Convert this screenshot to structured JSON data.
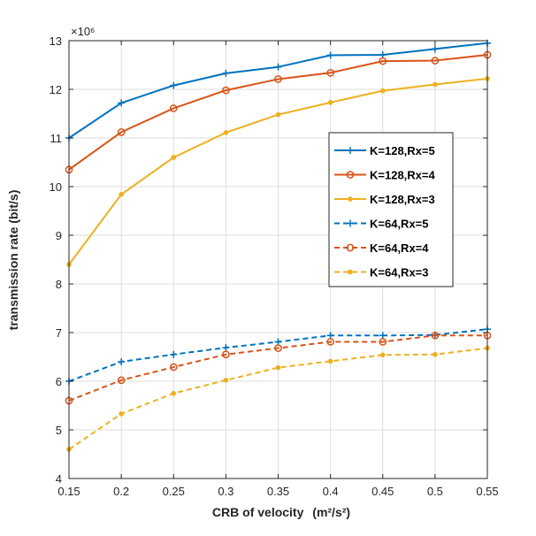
{
  "chart_data": {
    "type": "line",
    "title": "",
    "xlabel": "CRB of velocity",
    "xlabel_unit": "(m²/s²)",
    "ylabel": "transmission rate (bit/s)",
    "exponent_label": "×10⁶",
    "xlim": [
      0.15,
      0.55
    ],
    "ylim": [
      4,
      13
    ],
    "x": [
      0.15,
      0.2,
      0.25,
      0.3,
      0.35,
      0.4,
      0.45,
      0.5,
      0.55
    ],
    "x_tick_labels": [
      "0.15",
      "0.2",
      "0.25",
      "0.3",
      "0.35",
      "0.4",
      "0.45",
      "0.5",
      "0.55"
    ],
    "y_tick_labels": [
      "4",
      "5",
      "6",
      "7",
      "8",
      "9",
      "10",
      "11",
      "12",
      "13"
    ],
    "grid": true,
    "legend_position": "right-center",
    "series": [
      {
        "name": "K=128,Rx=5",
        "color": "#0072BD",
        "dash": "solid",
        "marker": "plus",
        "values": [
          11.0,
          11.72,
          12.08,
          12.33,
          12.46,
          12.7,
          12.71,
          12.83,
          12.95
        ]
      },
      {
        "name": "K=128,Rx=4",
        "color": "#D95319",
        "dash": "solid",
        "marker": "circle",
        "values": [
          10.35,
          11.12,
          11.61,
          11.98,
          12.21,
          12.34,
          12.58,
          12.59,
          12.71
        ]
      },
      {
        "name": "K=128,Rx=3",
        "color": "#EDB120",
        "dash": "solid",
        "marker": "dot",
        "values": [
          8.4,
          9.84,
          10.6,
          11.11,
          11.48,
          11.73,
          11.97,
          12.1,
          12.22
        ]
      },
      {
        "name": "K=64,Rx=5",
        "color": "#0072BD",
        "dash": "dashed",
        "marker": "plus",
        "values": [
          6.0,
          6.4,
          6.55,
          6.69,
          6.81,
          6.94,
          6.94,
          6.95,
          7.07
        ]
      },
      {
        "name": "K=64,Rx=4",
        "color": "#D95319",
        "dash": "dashed",
        "marker": "circle",
        "values": [
          5.6,
          6.02,
          6.29,
          6.55,
          6.68,
          6.81,
          6.81,
          6.94,
          6.94
        ]
      },
      {
        "name": "K=64,Rx=3",
        "color": "#EDB120",
        "dash": "dashed",
        "marker": "dot",
        "values": [
          4.6,
          5.33,
          5.75,
          6.02,
          6.28,
          6.41,
          6.54,
          6.55,
          6.68
        ]
      }
    ]
  }
}
